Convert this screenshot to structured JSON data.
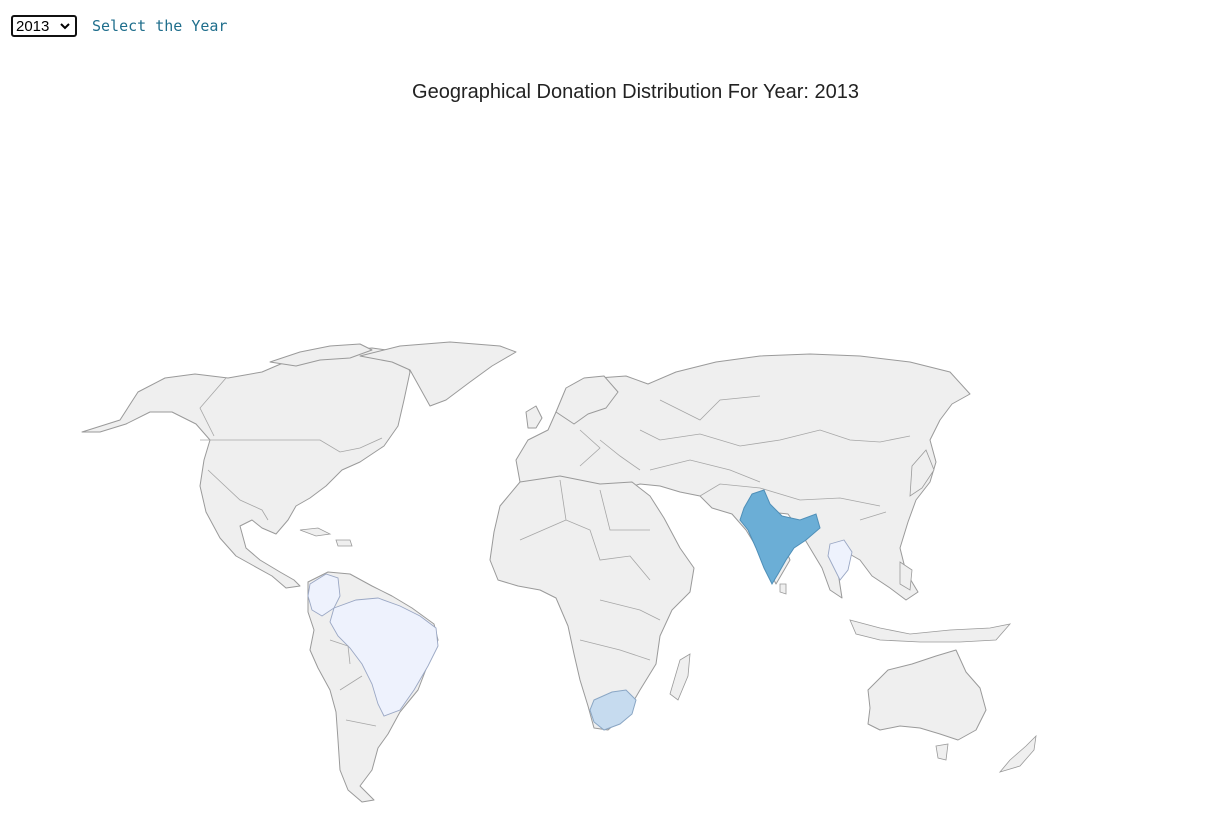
{
  "controls": {
    "year_selected": "2013",
    "year_label": "Select the Year"
  },
  "map": {
    "title": "Geographical Donation Distribution For Year: 2013",
    "base_color": "#efefef",
    "border_color": "#9a9a9a",
    "highlighted_countries": [
      {
        "name": "India",
        "color": "#6baed6"
      },
      {
        "name": "South Africa",
        "color": "#c6dbef"
      },
      {
        "name": "Brazil",
        "color": "#eef2fd"
      },
      {
        "name": "Colombia",
        "color": "#eef2fd"
      },
      {
        "name": "Thailand",
        "color": "#eef2fd"
      }
    ]
  }
}
